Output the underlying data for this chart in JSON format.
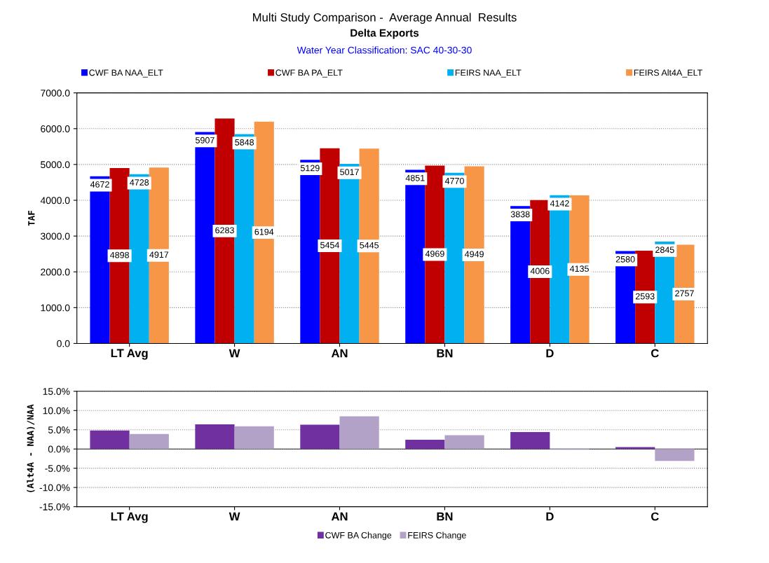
{
  "chart_data": [
    {
      "type": "bar",
      "title": "Multi Study Comparison -  Average Annual  Results",
      "subtitle": "Delta Exports",
      "annotations": [
        "Water Year Classification: SAC 40-30-30"
      ],
      "ylabel": "TAF",
      "categories": [
        "LT Avg",
        "W",
        "AN",
        "BN",
        "D",
        "C"
      ],
      "series": [
        {
          "name": "CWF BA NAA_ELT",
          "color": "#0000ff",
          "values": [
            4672,
            5907,
            5129,
            4851,
            3838,
            2580
          ]
        },
        {
          "name": "CWF BA PA_ELT",
          "color": "#c00000",
          "values": [
            4898,
            6283,
            5454,
            4969,
            4006,
            2593
          ]
        },
        {
          "name": "FEIRS NAA_ELT",
          "color": "#00b0f0",
          "values": [
            4728,
            5848,
            5017,
            4770,
            4142,
            2845
          ]
        },
        {
          "name": "FEIRS Alt4A_ELT",
          "color": "#f79646",
          "values": [
            4917,
            6194,
            5445,
            4949,
            4135,
            2757
          ]
        }
      ],
      "ylim": [
        0,
        7000
      ],
      "yticks": [
        {
          "value": 0,
          "label": "0.0"
        },
        {
          "value": 1000,
          "label": "1000.0"
        },
        {
          "value": 2000,
          "label": "2000.0"
        },
        {
          "value": 3000,
          "label": "3000.0"
        },
        {
          "value": 4000,
          "label": "4000.0"
        },
        {
          "value": 5000,
          "label": "5000.0"
        },
        {
          "value": 6000,
          "label": "6000.0"
        },
        {
          "value": 7000,
          "label": "7000.0"
        }
      ],
      "grid": "y",
      "legend": "top",
      "data_labels": true
    },
    {
      "type": "bar",
      "ylabel": "(Alt4A - NAA)/NAA",
      "categories": [
        "LT Avg",
        "W",
        "AN",
        "BN",
        "D",
        "C"
      ],
      "series": [
        {
          "name": "CWF BA Change",
          "color": "#7030a0",
          "values": [
            4.8,
            6.4,
            6.3,
            2.4,
            4.4,
            0.5
          ]
        },
        {
          "name": "FEIRS Change",
          "color": "#b3a2c7",
          "values": [
            3.9,
            5.9,
            8.5,
            3.6,
            -0.2,
            -3.1
          ]
        }
      ],
      "ylim": [
        -15,
        15
      ],
      "yticks": [
        {
          "value": -15,
          "label": "-15.0%"
        },
        {
          "value": -10,
          "label": "-10.0%"
        },
        {
          "value": -5,
          "label": "-5.0%"
        },
        {
          "value": 0,
          "label": "0.0%"
        },
        {
          "value": 5,
          "label": "5.0%"
        },
        {
          "value": 10,
          "label": "10.0%"
        },
        {
          "value": 15,
          "label": "15.0%"
        }
      ],
      "grid": "y",
      "legend": "bottom"
    }
  ]
}
